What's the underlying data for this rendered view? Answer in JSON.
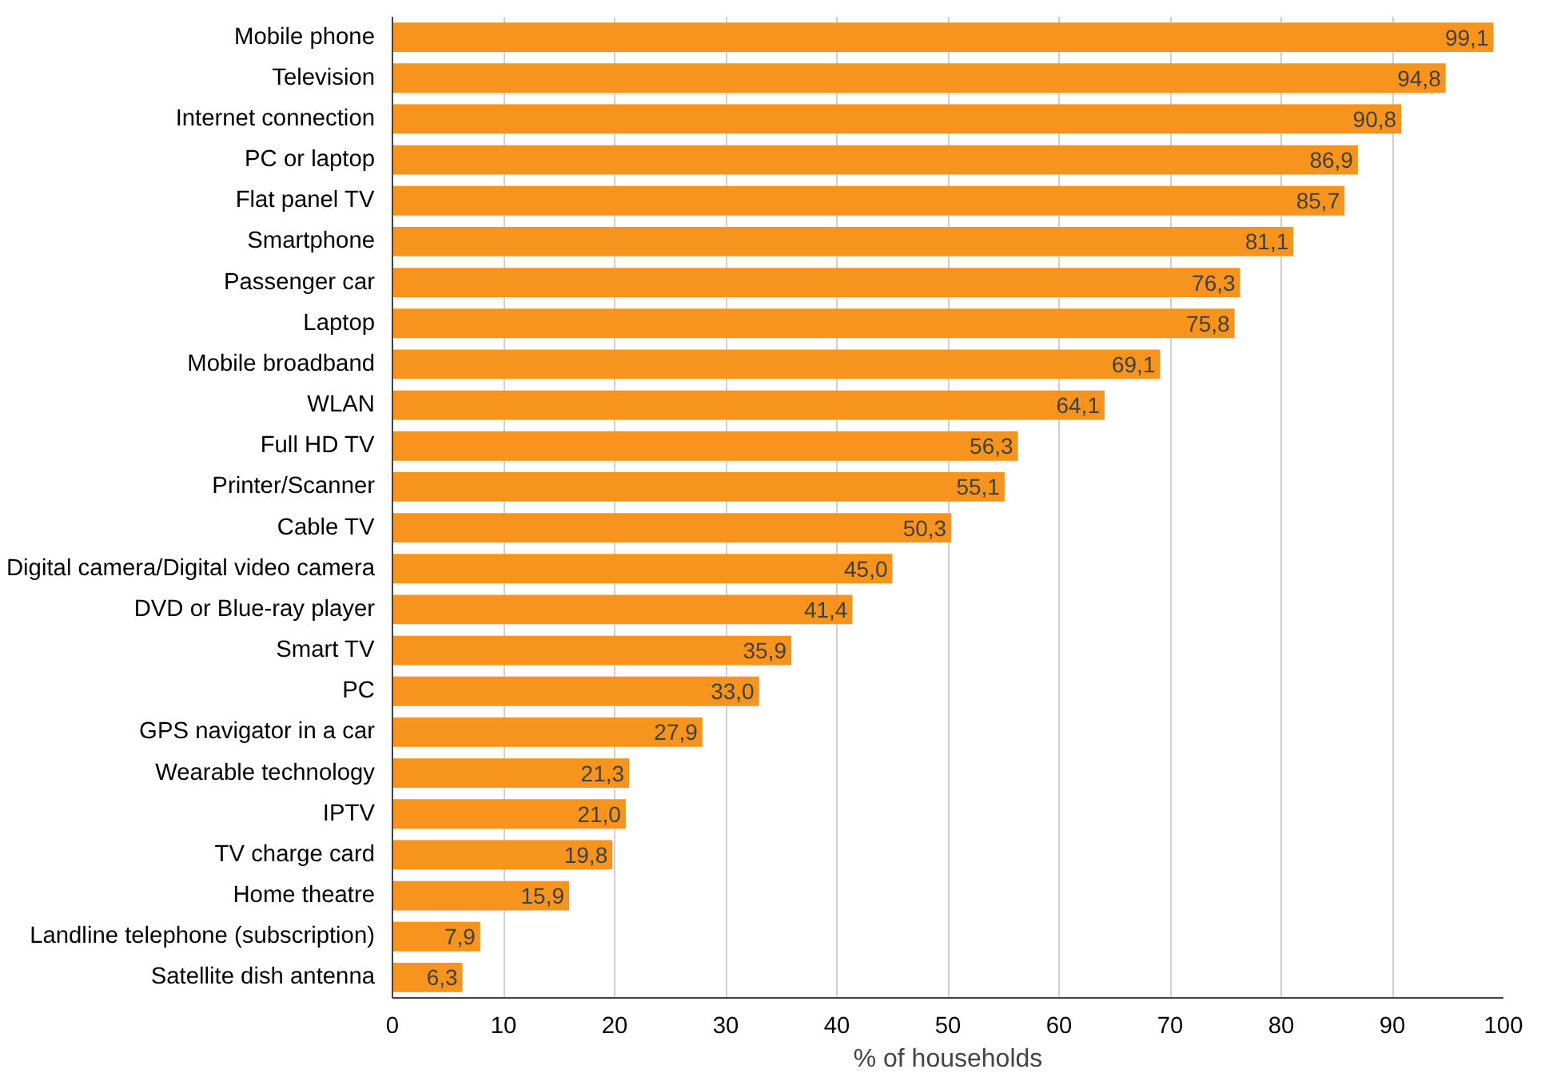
{
  "chart_data": {
    "type": "bar",
    "orientation": "horizontal",
    "xlabel": "% of households",
    "categories": [
      "Mobile phone",
      "Television",
      "Internet connection",
      "PC or laptop",
      "Flat panel TV",
      "Smartphone",
      "Passenger car",
      "Laptop",
      "Mobile broadband",
      "WLAN",
      "Full HD TV",
      "Printer/Scanner",
      "Cable TV",
      "Digital camera/Digital video camera",
      "DVD or Blue-ray player",
      "Smart TV",
      "PC",
      "GPS navigator in a car",
      "Wearable technology",
      "IPTV",
      "TV charge card",
      "Home theatre",
      "Landline telephone (subscription)",
      "Satellite dish antenna"
    ],
    "values": [
      99.1,
      94.8,
      90.8,
      86.9,
      85.7,
      81.1,
      76.3,
      75.8,
      69.1,
      64.1,
      56.3,
      55.1,
      50.3,
      45.0,
      41.4,
      35.9,
      33.0,
      27.9,
      21.3,
      21.0,
      19.8,
      15.9,
      7.9,
      6.3
    ],
    "value_labels": [
      "99,1",
      "94,8",
      "90,8",
      "86,9",
      "85,7",
      "81,1",
      "76,3",
      "75,8",
      "69,1",
      "64,1",
      "56,3",
      "55,1",
      "50,3",
      "45,0",
      "41,4",
      "35,9",
      "33,0",
      "27,9",
      "21,3",
      "21,0",
      "19,8",
      "15,9",
      "7,9",
      "6,3"
    ],
    "color": "#f7941d",
    "xlim": [
      0,
      100
    ],
    "xticks": [
      0,
      10,
      20,
      30,
      40,
      50,
      60,
      70,
      80,
      90,
      100
    ],
    "grid": "x"
  }
}
